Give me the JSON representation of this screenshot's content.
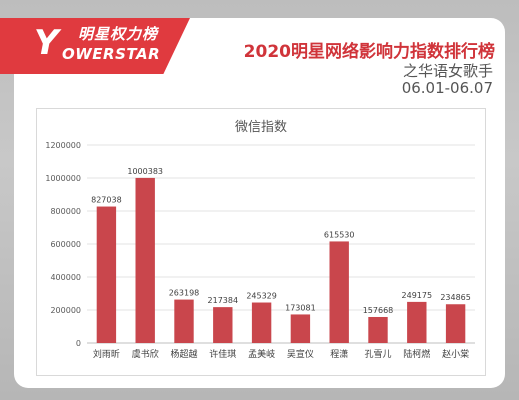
{
  "brand": {
    "logo_cn": "明星权力榜",
    "logo_en": "OWERSTAR",
    "logo_mark": "Y",
    "accent": "#e03a3f"
  },
  "header": {
    "title": "2020明星网络影响力指数排行榜",
    "subtitle": "之华语女歌手",
    "date_range": "06.01-06.07"
  },
  "chart_data": {
    "type": "bar",
    "title": "微信指数",
    "categories": [
      "刘雨昕",
      "虞书欣",
      "杨超越",
      "许佳琪",
      "孟美岐",
      "吴宣仪",
      "程潇",
      "孔雪儿",
      "陆柯燃",
      "赵小棠"
    ],
    "values": [
      827038,
      1000383,
      263198,
      217384,
      245329,
      173081,
      615530,
      157668,
      249175,
      234865
    ],
    "y_ticks": [
      "0",
      "200000",
      "400000",
      "600000",
      "800000",
      "1000000",
      "1200000"
    ],
    "ylim": [
      0,
      1200000
    ],
    "grid": true,
    "bar_color": "#c9464c"
  }
}
